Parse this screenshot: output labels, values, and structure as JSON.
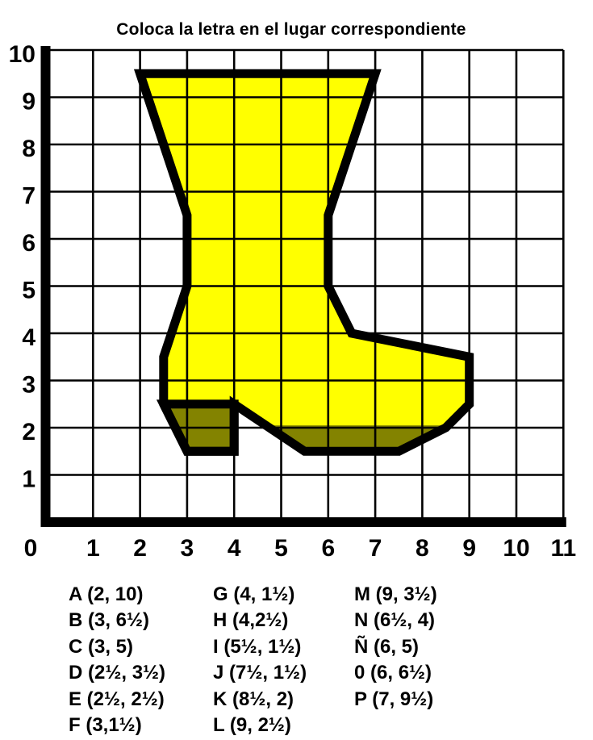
{
  "title": "Coloca la letra en el lugar correspondiente",
  "chart_data": {
    "type": "line",
    "description": "Coordinate-grid worksheet: lettered vertices outline a boot figure",
    "title": "Coloca la letra en el lugar correspondiente",
    "x_ticks": [
      "0",
      "1",
      "2",
      "3",
      "4",
      "5",
      "6",
      "7",
      "8",
      "9",
      "10",
      "11"
    ],
    "y_ticks": [
      "1",
      "2",
      "3",
      "4",
      "5",
      "6",
      "7",
      "8",
      "9",
      "10"
    ],
    "x_range": [
      0,
      11
    ],
    "y_range": [
      0,
      10
    ],
    "grid": true,
    "points": [
      {
        "label": "A",
        "x": 2,
        "y": 10
      },
      {
        "label": "B",
        "x": 3,
        "y": 6.5
      },
      {
        "label": "C",
        "x": 3,
        "y": 5
      },
      {
        "label": "D",
        "x": 2.5,
        "y": 3.5
      },
      {
        "label": "E",
        "x": 2.5,
        "y": 2.5
      },
      {
        "label": "F",
        "x": 3,
        "y": 1.5
      },
      {
        "label": "G",
        "x": 4,
        "y": 1.5
      },
      {
        "label": "H",
        "x": 4,
        "y": 2.5
      },
      {
        "label": "I",
        "x": 5.5,
        "y": 1.5
      },
      {
        "label": "J",
        "x": 7.5,
        "y": 1.5
      },
      {
        "label": "K",
        "x": 8.5,
        "y": 2
      },
      {
        "label": "L",
        "x": 9,
        "y": 2.5
      },
      {
        "label": "M",
        "x": 9,
        "y": 3.5
      },
      {
        "label": "N",
        "x": 6.5,
        "y": 4
      },
      {
        "label": "Ñ",
        "x": 6,
        "y": 5
      },
      {
        "label": "0",
        "x": 6,
        "y": 6.5
      },
      {
        "label": "P",
        "x": 7,
        "y": 9.5
      }
    ],
    "figure": {
      "outline": [
        [
          2,
          9.5
        ],
        [
          7,
          9.5
        ],
        [
          6,
          6.5
        ],
        [
          6,
          5
        ],
        [
          6.5,
          4
        ],
        [
          9,
          3.5
        ],
        [
          9,
          2.5
        ],
        [
          8.5,
          2
        ],
        [
          7.5,
          1.5
        ],
        [
          5.5,
          1.5
        ],
        [
          4,
          2.5
        ],
        [
          4,
          1.5
        ],
        [
          3,
          1.5
        ],
        [
          2.5,
          2.5
        ],
        [
          2.5,
          3.5
        ],
        [
          3,
          5
        ],
        [
          3,
          6.5
        ]
      ],
      "heel": [
        [
          2.5,
          2.5
        ],
        [
          4,
          2.5
        ],
        [
          4,
          1.5
        ],
        [
          3,
          1.5
        ]
      ],
      "sole": [
        [
          4.68,
          2.05
        ],
        [
          8.48,
          2.05
        ],
        [
          7.5,
          1.5
        ],
        [
          5.5,
          1.5
        ]
      ]
    },
    "colors": {
      "body": "#FFFF00",
      "dark": "#838300",
      "line": "#000000"
    }
  },
  "legend": {
    "columns": [
      [
        "A (2, 10)",
        "B (3, 6½)",
        "C (3, 5)",
        "D (2½, 3½)",
        "E (2½, 2½)",
        "F (3,1½)"
      ],
      [
        "G (4, 1½)",
        "H (4,2½)",
        "I (5½, 1½)",
        "J (7½, 1½)",
        "K (8½, 2)",
        "L (9, 2½)"
      ],
      [
        "M (9, 3½)",
        "N (6½, 4)",
        "Ñ (6, 5)",
        "0 (6, 6½)",
        "P (7, 9½)"
      ]
    ]
  }
}
